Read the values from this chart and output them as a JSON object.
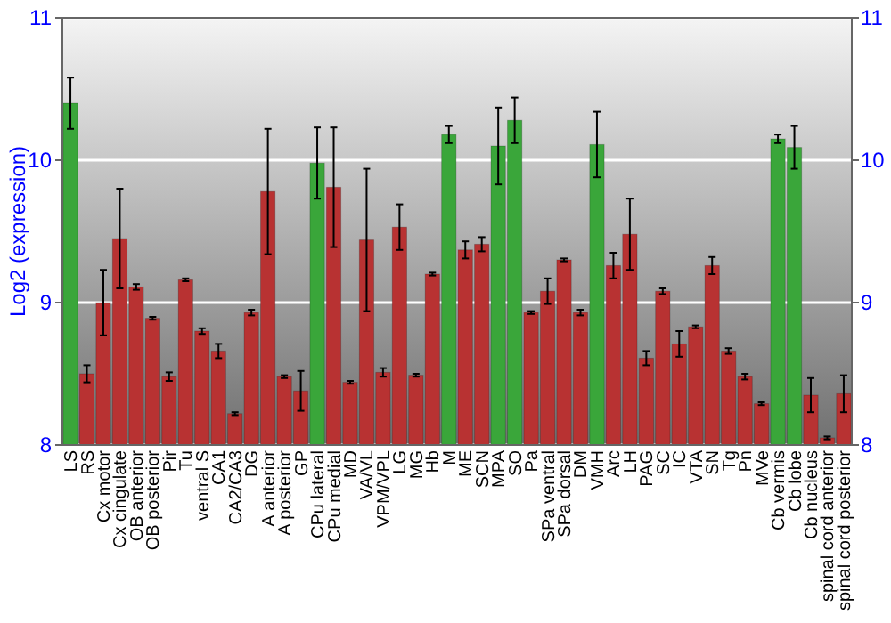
{
  "chart_data": {
    "type": "bar",
    "ylabel": "Log2 (expression)",
    "categories": [
      "LS",
      "RS",
      "Cx motor",
      "Cx cingulate",
      "OB anterior",
      "OB posterior",
      "Pir",
      "Tu",
      "ventral S",
      "CA1",
      "CA2/CA3",
      "DG",
      "A anterior",
      "A posterior",
      "GP",
      "CPu lateral",
      "CPu medial",
      "MD",
      "VA/VL",
      "VPM/VPL",
      "LG",
      "MG",
      "Hb",
      "M",
      "ME",
      "SCN",
      "MPA",
      "SO",
      "Pa",
      "SPa ventral",
      "SPa dorsal",
      "DM",
      "VMH",
      "Arc",
      "LH",
      "PAG",
      "SC",
      "IC",
      "VTA",
      "SN",
      "Tg",
      "Pn",
      "MVe",
      "Cb vermis",
      "Cb lobe",
      "Cb nucleus",
      "spinal cord anterior",
      "spinal cord posterior"
    ],
    "values": [
      10.4,
      8.5,
      9.0,
      9.45,
      9.11,
      8.89,
      8.48,
      9.16,
      8.8,
      8.66,
      8.22,
      8.93,
      9.78,
      8.48,
      8.38,
      9.98,
      9.81,
      8.44,
      9.44,
      8.51,
      9.53,
      8.49,
      9.2,
      10.18,
      9.37,
      9.41,
      10.1,
      10.28,
      8.93,
      9.08,
      9.3,
      8.93,
      10.11,
      9.26,
      9.48,
      8.61,
      9.08,
      8.71,
      8.83,
      9.26,
      8.66,
      8.48,
      8.29,
      10.15,
      10.09,
      8.35,
      8.05,
      8.36
    ],
    "errors": [
      0.18,
      0.06,
      0.23,
      0.35,
      0.02,
      0.01,
      0.03,
      0.01,
      0.02,
      0.05,
      0.01,
      0.02,
      0.44,
      0.01,
      0.14,
      0.25,
      0.42,
      0.01,
      0.5,
      0.03,
      0.16,
      0.01,
      0.01,
      0.06,
      0.06,
      0.05,
      0.27,
      0.16,
      0.01,
      0.09,
      0.01,
      0.02,
      0.23,
      0.09,
      0.25,
      0.05,
      0.02,
      0.09,
      0.01,
      0.06,
      0.02,
      0.02,
      0.01,
      0.03,
      0.15,
      0.12,
      0.01,
      0.13
    ],
    "colors": [
      "#3aa63a",
      "#b83232",
      "#b83232",
      "#b83232",
      "#b83232",
      "#b83232",
      "#b83232",
      "#b83232",
      "#b83232",
      "#b83232",
      "#b83232",
      "#b83232",
      "#b83232",
      "#b83232",
      "#b83232",
      "#3aa63a",
      "#b83232",
      "#b83232",
      "#b83232",
      "#b83232",
      "#b83232",
      "#b83232",
      "#b83232",
      "#3aa63a",
      "#b83232",
      "#b83232",
      "#3aa63a",
      "#3aa63a",
      "#b83232",
      "#b83232",
      "#b83232",
      "#b83232",
      "#3aa63a",
      "#b83232",
      "#b83232",
      "#b83232",
      "#b83232",
      "#b83232",
      "#b83232",
      "#b83232",
      "#b83232",
      "#b83232",
      "#b83232",
      "#3aa63a",
      "#3aa63a",
      "#b83232",
      "#b83232",
      "#b83232"
    ],
    "ylim": [
      8,
      11
    ],
    "yticks": [
      8,
      9,
      10,
      11
    ],
    "y2lim": [
      8,
      11
    ],
    "y2ticks": [
      8,
      9,
      10,
      11
    ],
    "grid": "y"
  }
}
